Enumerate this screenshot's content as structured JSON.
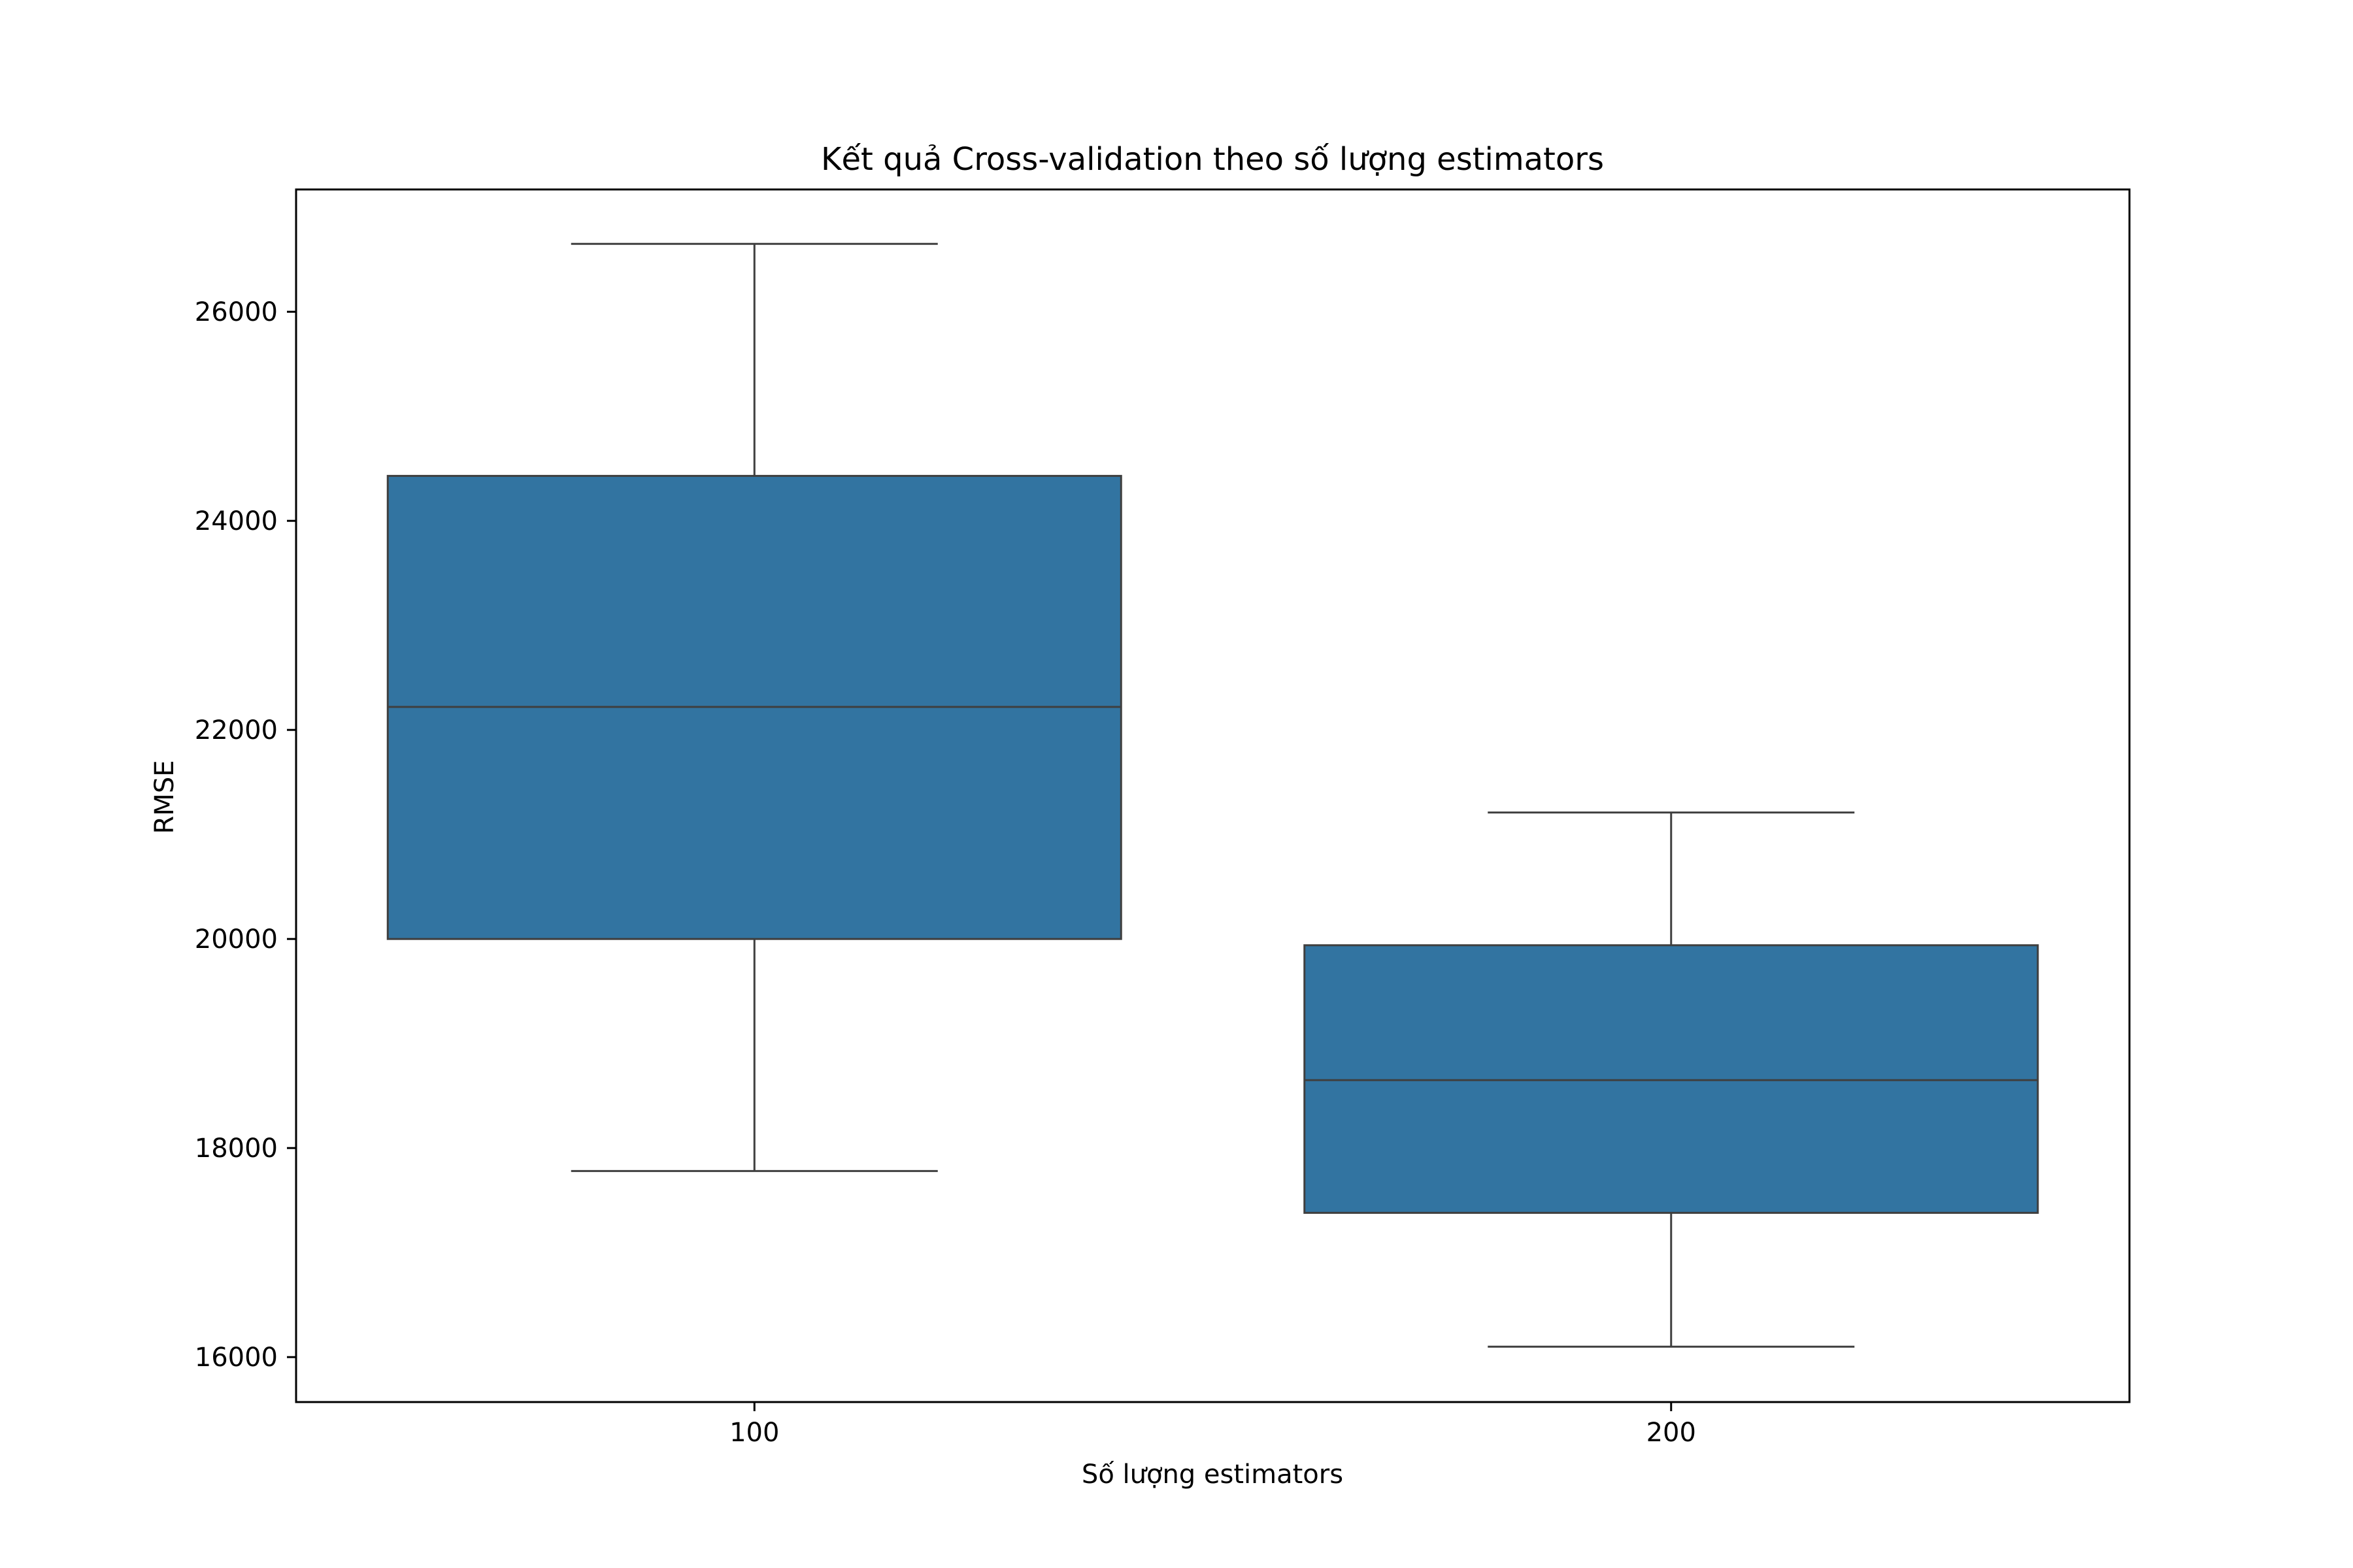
{
  "chart_data": {
    "type": "box",
    "title": "Kết quả Cross-validation theo số lượng estimators",
    "xlabel": "Số lượng estimators",
    "ylabel": "RMSE",
    "categories": [
      "100",
      "200"
    ],
    "boxes": [
      {
        "category": "100",
        "whisker_low": 17780,
        "q1": 20000,
        "median": 22220,
        "q3": 24430,
        "whisker_high": 26650
      },
      {
        "category": "200",
        "whisker_low": 16100,
        "q1": 17380,
        "median": 18650,
        "q3": 19940,
        "whisker_high": 21210
      }
    ],
    "yticks": [
      16000,
      18000,
      20000,
      22000,
      24000,
      26000
    ],
    "ytick_labels": [
      "16000",
      "18000",
      "20000",
      "22000",
      "24000",
      "26000"
    ],
    "ylim": [
      15570,
      27170
    ],
    "grid": false,
    "colors": {
      "box_fill": "#3274a1",
      "box_edge": "#3f3f3f",
      "median": "#3f3f3f",
      "whisker": "#3f3f3f",
      "axes": "#000000"
    }
  }
}
